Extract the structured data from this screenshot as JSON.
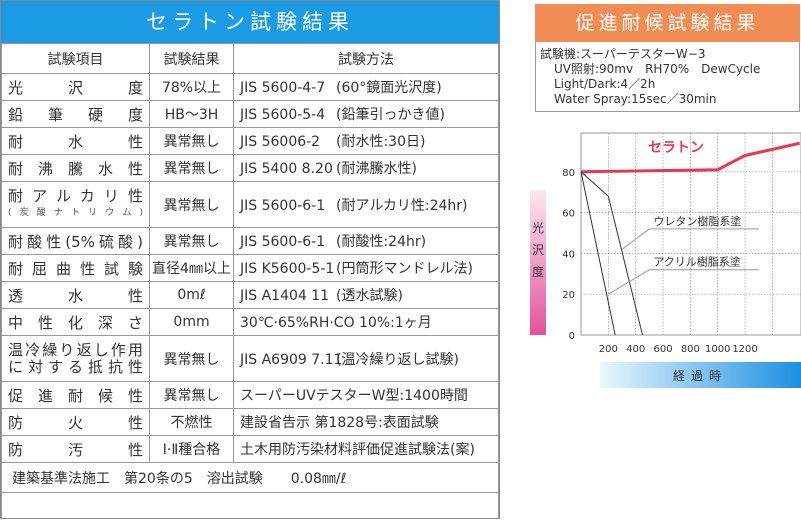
{
  "left": {
    "title": "セラトン試験結果",
    "headers": [
      "試験項目",
      "試験結果",
      "試験方法"
    ],
    "rows": [
      {
        "item": "光沢度",
        "result": "78%以上",
        "method": "JIS 5600-4-7",
        "note": "(60°鏡面光沢度)"
      },
      {
        "item": "鉛筆硬度",
        "result": "HB～3H",
        "method": "JIS 5600-5-4",
        "note": "(鉛筆引っかき値)"
      },
      {
        "item": "耐水性",
        "result": "異常無し",
        "method": "JIS 56006-2",
        "note": "(耐水性:30日)"
      },
      {
        "item": "耐沸騰水性",
        "result": "異常無し",
        "method": "JIS 5400 8.20",
        "note": "(耐沸騰水性)"
      },
      {
        "item": "耐アルカリ性",
        "sub": "(炭酸ナトリウム)",
        "result": "異常無し",
        "method": "JIS 5600-6-1",
        "note": "(耐アルカリ性:24hr)"
      },
      {
        "item": "耐酸性(5%硫酸)",
        "result": "異常無し",
        "method": "JIS 5600-6-1",
        "note": "(耐酸性:24hr)"
      },
      {
        "item": "耐屈曲性試験",
        "result": "直径4㎜以上",
        "method": "JIS K5600-5-1",
        "note": "(円筒形マンドレル法)"
      },
      {
        "item": "透水性",
        "result": "0mℓ",
        "method": "JIS A1404 11",
        "note": "(透水試験)"
      },
      {
        "item": "中性化深さ",
        "result": "0mm",
        "method": "30℃·65%RH·CO 10%:1ヶ月",
        "note": ""
      },
      {
        "item": "温冷繰り返し作用",
        "item2": "に対する抵抗性",
        "result": "異常無し",
        "method": "JIS A6909 7.11",
        "note": "(温冷繰り返し試験)"
      },
      {
        "item": "促進耐候性",
        "result": "異常無し",
        "method": "スーパーUVテスターW型:1400時間",
        "note": ""
      },
      {
        "item": "防火性",
        "result": "不燃性",
        "method": "建設省告示 第1828号:表面試験",
        "note": ""
      },
      {
        "item": "防汚性",
        "result": "Ⅰ·Ⅱ種合格",
        "method": "土木用防汚染材料評価促進試験法(案)",
        "note": ""
      }
    ],
    "footer": "建築基準法施工　第20条の5　溶出試験　　0.08㎜/ℓ"
  },
  "right": {
    "title": "促進耐候試験結果",
    "info": [
      "試験機:スーパーテスターW−3",
      "UV照射:90mv　RH70%　DewCycle",
      "Light/Dark:4／2h",
      "Water Spray:15sec／30min"
    ]
  },
  "chart_data": {
    "type": "line",
    "xlabel": "経過時",
    "ylabel": "光沢度",
    "xlim": [
      0,
      1600
    ],
    "ylim": [
      0,
      100
    ],
    "xticks": [
      200,
      400,
      600,
      800,
      1000,
      1200
    ],
    "yticks": [
      0,
      20,
      40,
      60,
      80
    ],
    "grid": true,
    "series": [
      {
        "name": "セラトン",
        "color": "#e8384f",
        "points": [
          [
            0,
            80
          ],
          [
            1000,
            81
          ],
          [
            1200,
            88
          ],
          [
            1600,
            94
          ]
        ]
      },
      {
        "name": "ウレタン樹脂系塗",
        "color": "#333333",
        "points": [
          [
            0,
            80
          ],
          [
            200,
            68
          ],
          [
            450,
            0
          ]
        ]
      },
      {
        "name": "アクリル樹脂系塗",
        "color": "#333333",
        "points": [
          [
            0,
            80
          ],
          [
            250,
            0
          ]
        ]
      }
    ]
  }
}
